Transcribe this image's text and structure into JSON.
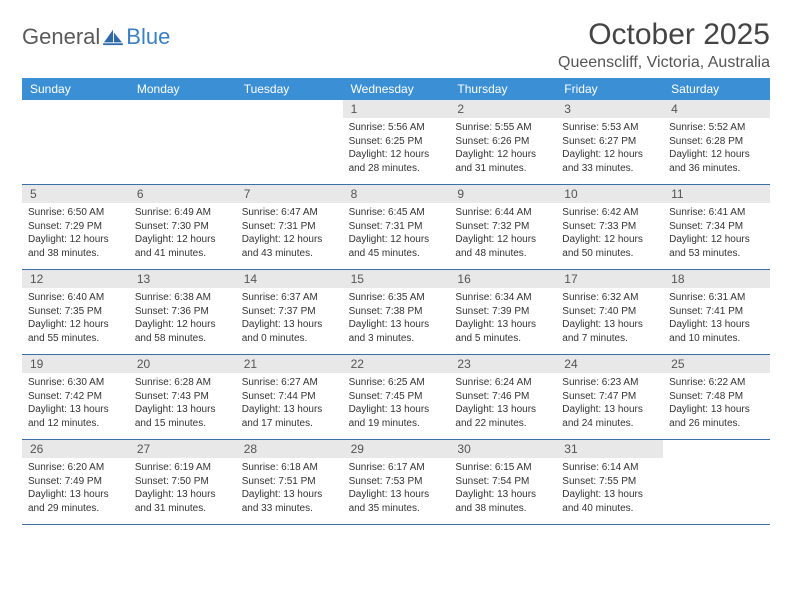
{
  "brand": {
    "part1": "General",
    "part2": "Blue"
  },
  "title": "October 2025",
  "location": "Queenscliff, Victoria, Australia",
  "columns": [
    "Sunday",
    "Monday",
    "Tuesday",
    "Wednesday",
    "Thursday",
    "Friday",
    "Saturday"
  ],
  "colors": {
    "header_bg": "#3b8fd4",
    "header_text": "#ffffff",
    "daynum_bg": "#e8e8e8",
    "border": "#3b6fa8",
    "brand_gray": "#5a5a5a",
    "brand_blue": "#3b7fc4"
  },
  "weeks": [
    [
      {
        "n": "",
        "empty": true
      },
      {
        "n": "",
        "empty": true
      },
      {
        "n": "",
        "empty": true
      },
      {
        "n": "1",
        "sr": "Sunrise: 5:56 AM",
        "ss": "Sunset: 6:25 PM",
        "d1": "Daylight: 12 hours",
        "d2": "and 28 minutes."
      },
      {
        "n": "2",
        "sr": "Sunrise: 5:55 AM",
        "ss": "Sunset: 6:26 PM",
        "d1": "Daylight: 12 hours",
        "d2": "and 31 minutes."
      },
      {
        "n": "3",
        "sr": "Sunrise: 5:53 AM",
        "ss": "Sunset: 6:27 PM",
        "d1": "Daylight: 12 hours",
        "d2": "and 33 minutes."
      },
      {
        "n": "4",
        "sr": "Sunrise: 5:52 AM",
        "ss": "Sunset: 6:28 PM",
        "d1": "Daylight: 12 hours",
        "d2": "and 36 minutes."
      }
    ],
    [
      {
        "n": "5",
        "sr": "Sunrise: 6:50 AM",
        "ss": "Sunset: 7:29 PM",
        "d1": "Daylight: 12 hours",
        "d2": "and 38 minutes."
      },
      {
        "n": "6",
        "sr": "Sunrise: 6:49 AM",
        "ss": "Sunset: 7:30 PM",
        "d1": "Daylight: 12 hours",
        "d2": "and 41 minutes."
      },
      {
        "n": "7",
        "sr": "Sunrise: 6:47 AM",
        "ss": "Sunset: 7:31 PM",
        "d1": "Daylight: 12 hours",
        "d2": "and 43 minutes."
      },
      {
        "n": "8",
        "sr": "Sunrise: 6:45 AM",
        "ss": "Sunset: 7:31 PM",
        "d1": "Daylight: 12 hours",
        "d2": "and 45 minutes."
      },
      {
        "n": "9",
        "sr": "Sunrise: 6:44 AM",
        "ss": "Sunset: 7:32 PM",
        "d1": "Daylight: 12 hours",
        "d2": "and 48 minutes."
      },
      {
        "n": "10",
        "sr": "Sunrise: 6:42 AM",
        "ss": "Sunset: 7:33 PM",
        "d1": "Daylight: 12 hours",
        "d2": "and 50 minutes."
      },
      {
        "n": "11",
        "sr": "Sunrise: 6:41 AM",
        "ss": "Sunset: 7:34 PM",
        "d1": "Daylight: 12 hours",
        "d2": "and 53 minutes."
      }
    ],
    [
      {
        "n": "12",
        "sr": "Sunrise: 6:40 AM",
        "ss": "Sunset: 7:35 PM",
        "d1": "Daylight: 12 hours",
        "d2": "and 55 minutes."
      },
      {
        "n": "13",
        "sr": "Sunrise: 6:38 AM",
        "ss": "Sunset: 7:36 PM",
        "d1": "Daylight: 12 hours",
        "d2": "and 58 minutes."
      },
      {
        "n": "14",
        "sr": "Sunrise: 6:37 AM",
        "ss": "Sunset: 7:37 PM",
        "d1": "Daylight: 13 hours",
        "d2": "and 0 minutes."
      },
      {
        "n": "15",
        "sr": "Sunrise: 6:35 AM",
        "ss": "Sunset: 7:38 PM",
        "d1": "Daylight: 13 hours",
        "d2": "and 3 minutes."
      },
      {
        "n": "16",
        "sr": "Sunrise: 6:34 AM",
        "ss": "Sunset: 7:39 PM",
        "d1": "Daylight: 13 hours",
        "d2": "and 5 minutes."
      },
      {
        "n": "17",
        "sr": "Sunrise: 6:32 AM",
        "ss": "Sunset: 7:40 PM",
        "d1": "Daylight: 13 hours",
        "d2": "and 7 minutes."
      },
      {
        "n": "18",
        "sr": "Sunrise: 6:31 AM",
        "ss": "Sunset: 7:41 PM",
        "d1": "Daylight: 13 hours",
        "d2": "and 10 minutes."
      }
    ],
    [
      {
        "n": "19",
        "sr": "Sunrise: 6:30 AM",
        "ss": "Sunset: 7:42 PM",
        "d1": "Daylight: 13 hours",
        "d2": "and 12 minutes."
      },
      {
        "n": "20",
        "sr": "Sunrise: 6:28 AM",
        "ss": "Sunset: 7:43 PM",
        "d1": "Daylight: 13 hours",
        "d2": "and 15 minutes."
      },
      {
        "n": "21",
        "sr": "Sunrise: 6:27 AM",
        "ss": "Sunset: 7:44 PM",
        "d1": "Daylight: 13 hours",
        "d2": "and 17 minutes."
      },
      {
        "n": "22",
        "sr": "Sunrise: 6:25 AM",
        "ss": "Sunset: 7:45 PM",
        "d1": "Daylight: 13 hours",
        "d2": "and 19 minutes."
      },
      {
        "n": "23",
        "sr": "Sunrise: 6:24 AM",
        "ss": "Sunset: 7:46 PM",
        "d1": "Daylight: 13 hours",
        "d2": "and 22 minutes."
      },
      {
        "n": "24",
        "sr": "Sunrise: 6:23 AM",
        "ss": "Sunset: 7:47 PM",
        "d1": "Daylight: 13 hours",
        "d2": "and 24 minutes."
      },
      {
        "n": "25",
        "sr": "Sunrise: 6:22 AM",
        "ss": "Sunset: 7:48 PM",
        "d1": "Daylight: 13 hours",
        "d2": "and 26 minutes."
      }
    ],
    [
      {
        "n": "26",
        "sr": "Sunrise: 6:20 AM",
        "ss": "Sunset: 7:49 PM",
        "d1": "Daylight: 13 hours",
        "d2": "and 29 minutes."
      },
      {
        "n": "27",
        "sr": "Sunrise: 6:19 AM",
        "ss": "Sunset: 7:50 PM",
        "d1": "Daylight: 13 hours",
        "d2": "and 31 minutes."
      },
      {
        "n": "28",
        "sr": "Sunrise: 6:18 AM",
        "ss": "Sunset: 7:51 PM",
        "d1": "Daylight: 13 hours",
        "d2": "and 33 minutes."
      },
      {
        "n": "29",
        "sr": "Sunrise: 6:17 AM",
        "ss": "Sunset: 7:53 PM",
        "d1": "Daylight: 13 hours",
        "d2": "and 35 minutes."
      },
      {
        "n": "30",
        "sr": "Sunrise: 6:15 AM",
        "ss": "Sunset: 7:54 PM",
        "d1": "Daylight: 13 hours",
        "d2": "and 38 minutes."
      },
      {
        "n": "31",
        "sr": "Sunrise: 6:14 AM",
        "ss": "Sunset: 7:55 PM",
        "d1": "Daylight: 13 hours",
        "d2": "and 40 minutes."
      },
      {
        "n": "",
        "empty": true
      }
    ]
  ]
}
